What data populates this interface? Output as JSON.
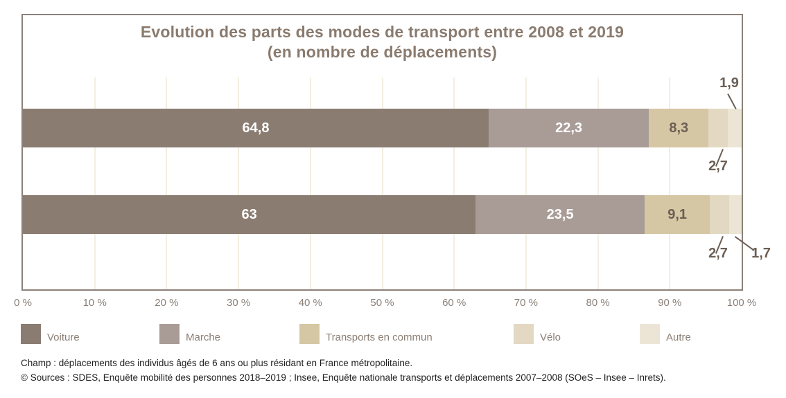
{
  "chart_data": {
    "type": "bar",
    "orientation": "horizontal",
    "stacked": true,
    "title": "Evolution des parts des modes de transport entre 2008 et 2019",
    "subtitle": "(en nombre de déplacements)",
    "unit": "%",
    "xlim": [
      0,
      100
    ],
    "x_ticks": [
      "0 %",
      "10 %",
      "20 %",
      "30 %",
      "40 %",
      "50 %",
      "60 %",
      "70 %",
      "80 %",
      "90 %",
      "100 %"
    ],
    "grid": "vertical",
    "legend_position": "bottom",
    "bars_note": "two unlabeled stacked bars; values as percentages, top bar then bottom bar",
    "series": [
      {
        "name": "Voiture",
        "color": "#8b7c72",
        "values": [
          64.8,
          63.0
        ],
        "labels": [
          "64,8",
          "63"
        ]
      },
      {
        "name": "Marche",
        "color": "#a99c97",
        "values": [
          22.3,
          23.5
        ],
        "labels": [
          "22,3",
          "23,5"
        ]
      },
      {
        "name": "Transports en commun",
        "color": "#d6c7a4",
        "values": [
          8.3,
          9.1
        ],
        "labels": [
          "8,3",
          "9,1"
        ]
      },
      {
        "name": "Vélo",
        "color": "#e3d9c2",
        "values": [
          2.7,
          2.7
        ],
        "labels": [
          "2,7",
          "2,7"
        ]
      },
      {
        "name": "Autre",
        "color": "#ece5d6",
        "values": [
          1.9,
          1.7
        ],
        "labels": [
          "1,9",
          "1,7"
        ]
      }
    ]
  },
  "callouts": {
    "top_autre": "1,9",
    "top_velo": "2,7",
    "bottom_velo": "2,7",
    "bottom_autre": "1,7"
  },
  "legend": {
    "items": [
      {
        "label": "Voiture",
        "color": "#8b7c72"
      },
      {
        "label": "Marche",
        "color": "#a99c97"
      },
      {
        "label": "Transports en commun",
        "color": "#d6c7a4"
      },
      {
        "label": "Vélo",
        "color": "#e3d9c2"
      },
      {
        "label": "Autre",
        "color": "#ece5d6"
      }
    ]
  },
  "footnotes": {
    "champ": "Champ : déplacements des individus âgés de 6 ans ou plus résidant en France métropolitaine.",
    "sources": "© Sources : SDES, Enquête mobilité des personnes 2018–2019 ; Insee, Enquête nationale transports et déplacements 2007–2008 (SOeS – Insee – Inrets)."
  },
  "colors": {
    "frame": "#8b8178",
    "grid": "#f3eee1",
    "title_text": "#8a7b6f",
    "tick_text": "#8a8078",
    "callout_text": "#6b5e54",
    "value_light": "#ffffff",
    "value_dark": "#6b5e54"
  }
}
